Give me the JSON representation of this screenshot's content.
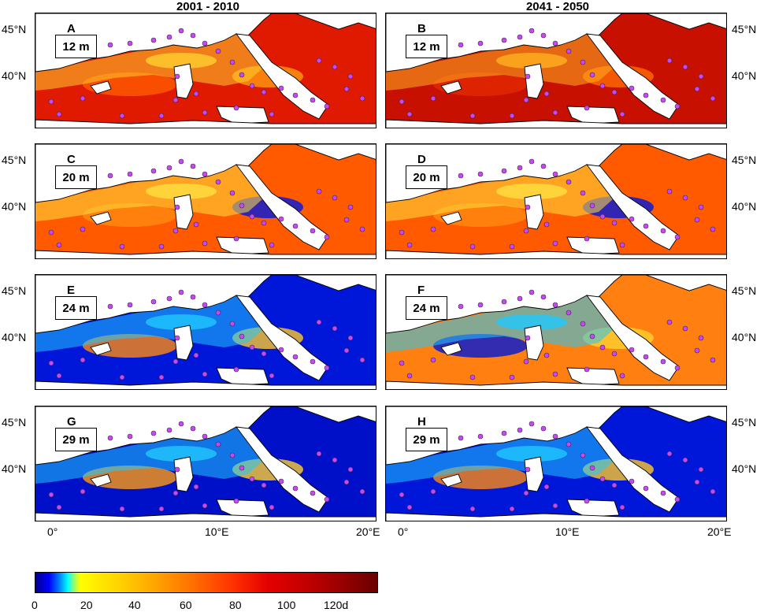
{
  "columns": [
    "2001 - 2010",
    "2041 - 2050"
  ],
  "panels": [
    {
      "letter": "A",
      "depth": "12 m",
      "dominant": "red"
    },
    {
      "letter": "B",
      "depth": "12 m",
      "dominant": "dark-red"
    },
    {
      "letter": "C",
      "depth": "20 m",
      "dominant": "red-orange"
    },
    {
      "letter": "D",
      "depth": "20 m",
      "dominant": "red-orange"
    },
    {
      "letter": "E",
      "depth": "24 m",
      "dominant": "blue-orange"
    },
    {
      "letter": "F",
      "depth": "24 m",
      "dominant": "orange-blue"
    },
    {
      "letter": "G",
      "depth": "29 m",
      "dominant": "blue"
    },
    {
      "letter": "H",
      "depth": "29 m",
      "dominant": "blue-orange"
    }
  ],
  "lat_labels": [
    "45°N",
    "40°N"
  ],
  "lon_labels": [
    "0°",
    "10°E",
    "20°E"
  ],
  "colorbar": {
    "ticks": [
      "0",
      "20",
      "40",
      "60",
      "80",
      "100",
      "120d"
    ],
    "colors": [
      "#00008f",
      "#0000ff",
      "#00ffff",
      "#ffff00",
      "#ffa000",
      "#ff3000",
      "#c00000",
      "#6a0000"
    ]
  },
  "site_marker_color": "#cc44ff"
}
